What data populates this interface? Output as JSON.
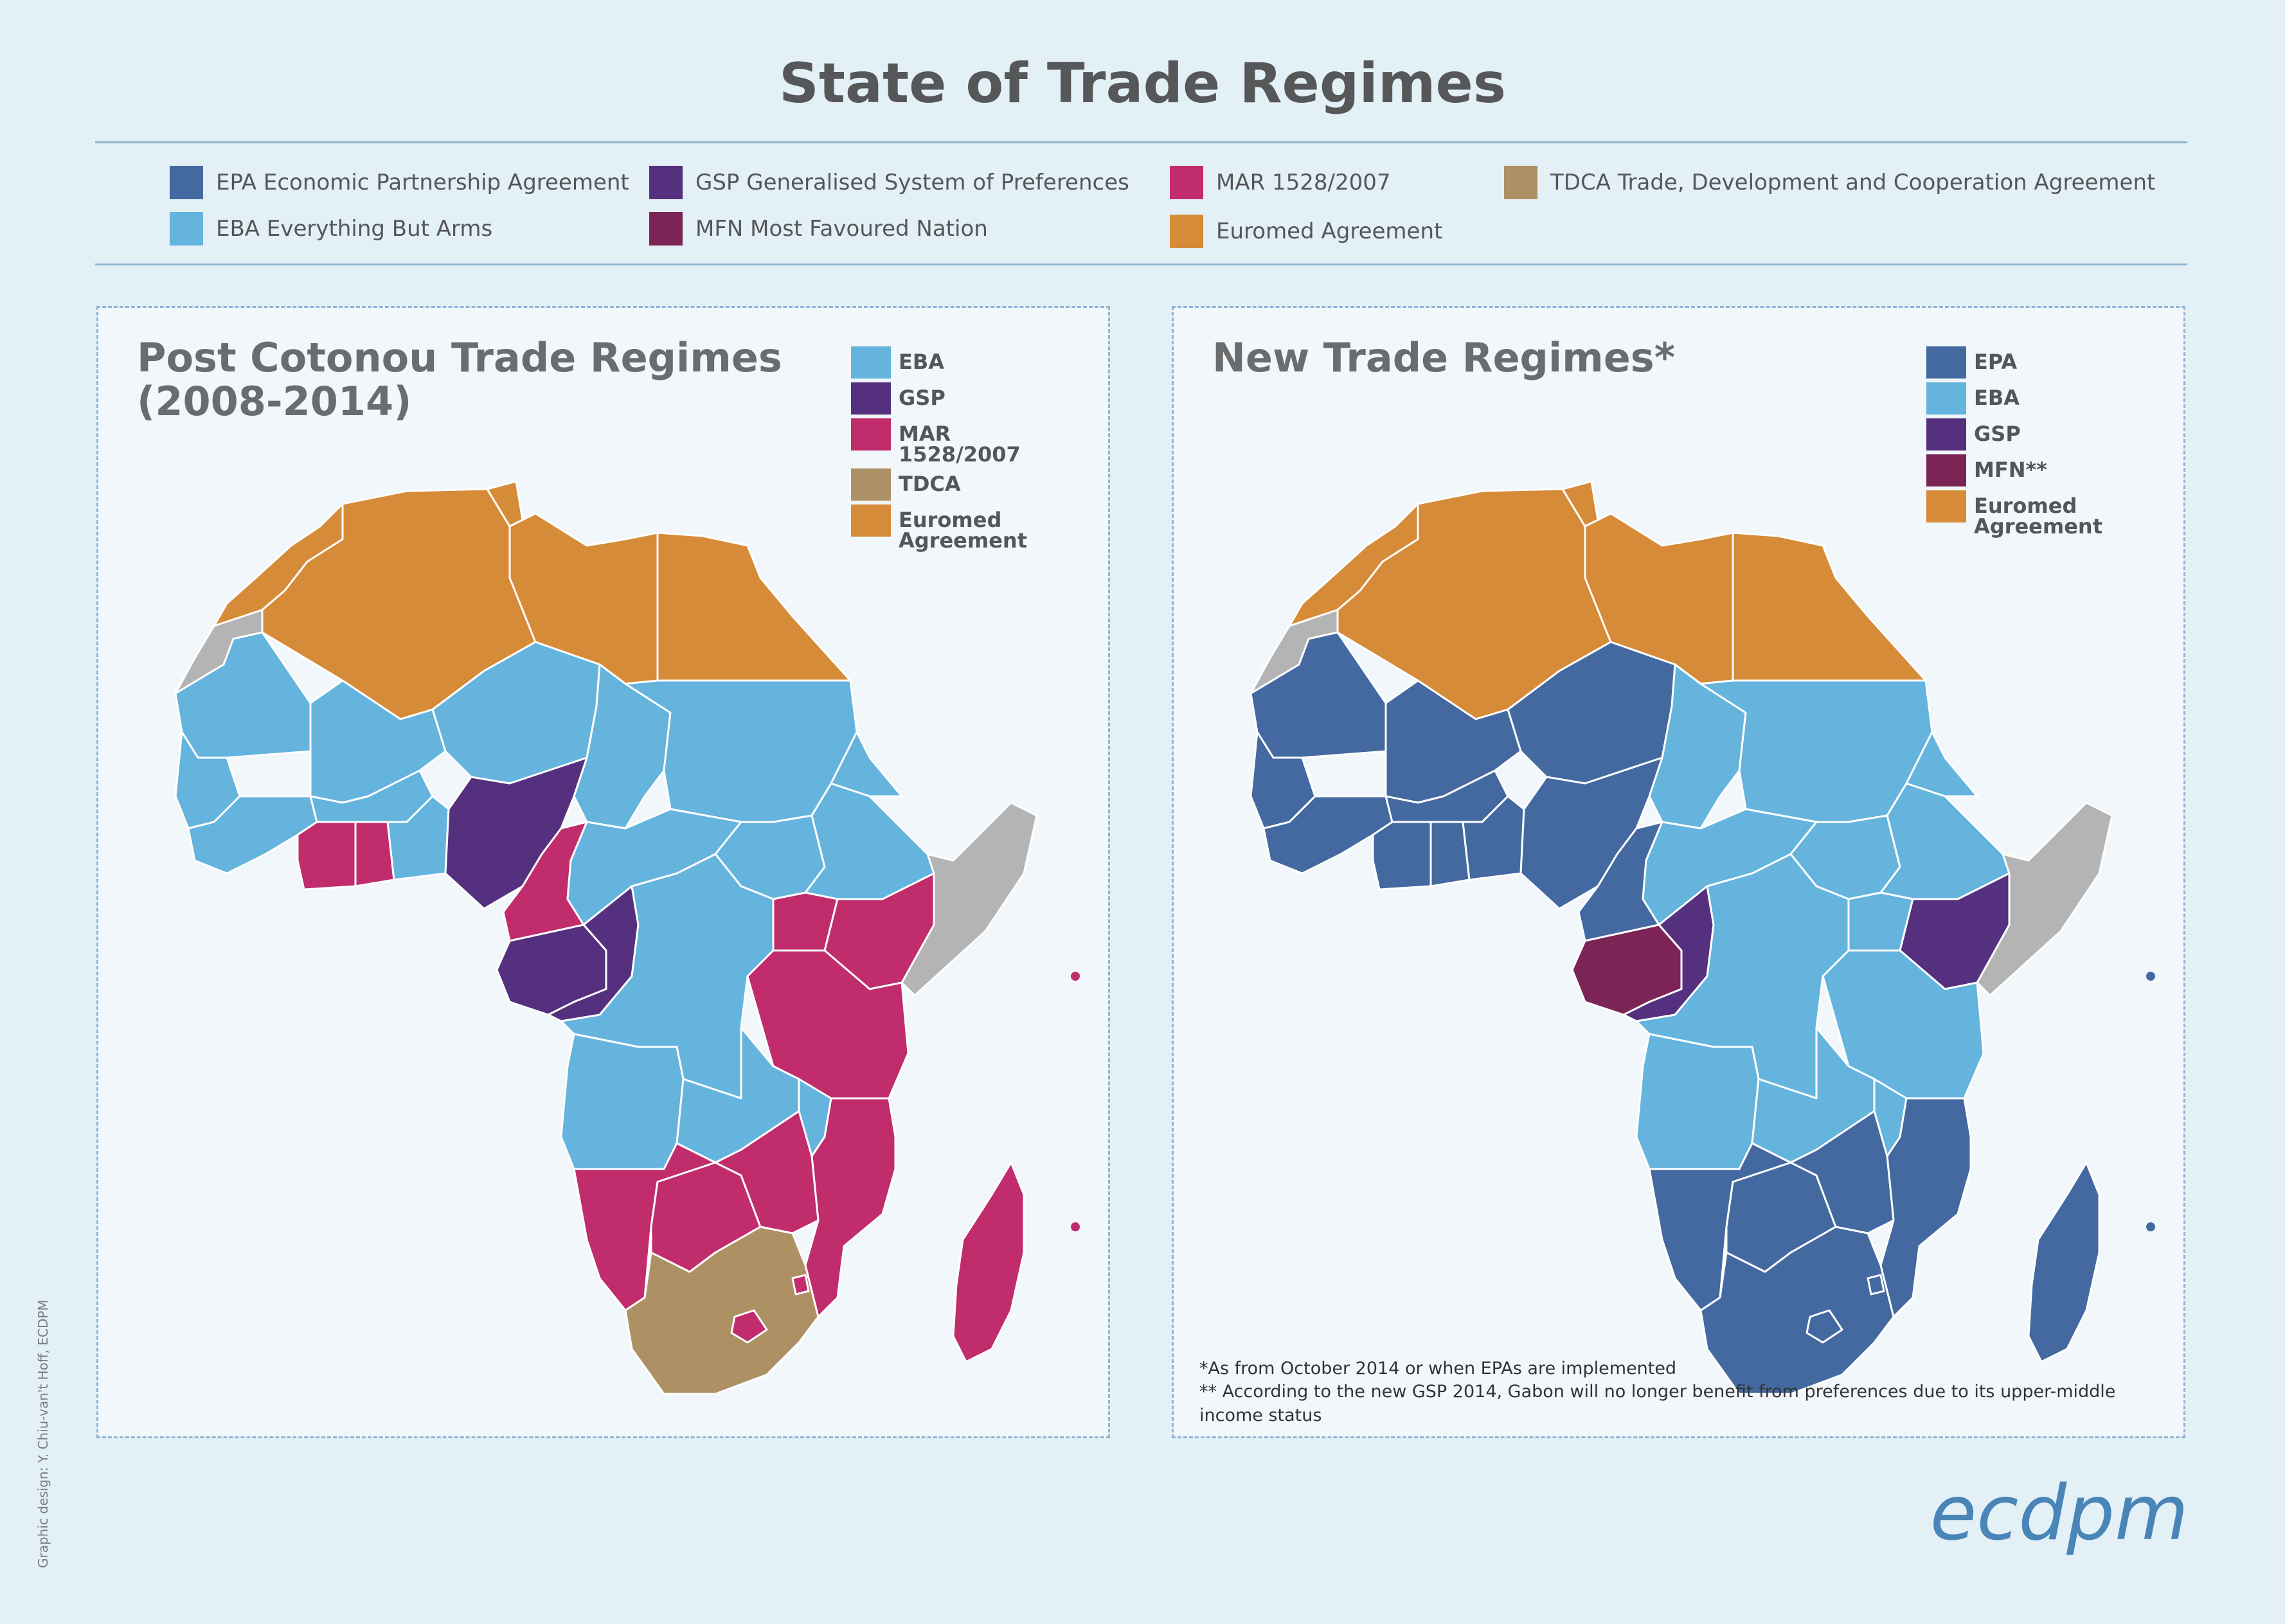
{
  "title": "State of Trade Regimes",
  "colors": {
    "EPA": "#4469a1",
    "EBA": "#64b4de",
    "GSP": "#54307e",
    "MFN": "#7c2456",
    "MAR": "#c02c6c",
    "TDCA": "#ae9065",
    "Euromed": "#d68b38",
    "None": "#b4b4b4",
    "border": "#ffffff"
  },
  "legend": [
    {
      "key": "EPA",
      "label": "EPA Economic Partnership Agreement"
    },
    {
      "key": "EBA",
      "label": "EBA Everything But Arms"
    },
    {
      "key": "GSP",
      "label": "GSP Generalised System of Preferences"
    },
    {
      "key": "MFN",
      "label": "MFN Most Favoured Nation"
    },
    {
      "key": "MAR",
      "label": "MAR 1528/2007"
    },
    {
      "key": "Euromed",
      "label": "Euromed Agreement"
    },
    {
      "key": "TDCA",
      "label": "TDCA Trade, Development and Cooperation Agreement"
    }
  ],
  "left_panel": {
    "title_line1": "Post Cotonou Trade Regimes",
    "title_line2": "(2008-2014)",
    "key": [
      {
        "key": "EBA",
        "label": "EBA"
      },
      {
        "key": "GSP",
        "label": "GSP"
      },
      {
        "key": "MAR",
        "label": "MAR 1528/2007"
      },
      {
        "key": "TDCA",
        "label": "TDCA"
      },
      {
        "key": "Euromed",
        "label": "Euromed Agreement"
      }
    ]
  },
  "right_panel": {
    "title": "New Trade Regimes*",
    "key": [
      {
        "key": "EPA",
        "label": "EPA"
      },
      {
        "key": "EBA",
        "label": "EBA"
      },
      {
        "key": "GSP",
        "label": "GSP"
      },
      {
        "key": "MFN",
        "label": "MFN**"
      },
      {
        "key": "Euromed",
        "label": "Euromed Agreement"
      }
    ],
    "footnote1": "*As from October 2014 or when EPAs are implemented",
    "footnote2": "** According to the new GSP 2014, Gabon will no longer benefit from preferences due to its upper-middle income status"
  },
  "credit": "Graphic design: Y. Chiu-van't Hoff, ECDPM",
  "logo": "ecdpm",
  "regions": [
    {
      "name": "morocco",
      "left": "Euromed",
      "right": "Euromed"
    },
    {
      "name": "western-sahara",
      "left": "None",
      "right": "None"
    },
    {
      "name": "algeria",
      "left": "Euromed",
      "right": "Euromed"
    },
    {
      "name": "tunisia",
      "left": "Euromed",
      "right": "Euromed"
    },
    {
      "name": "libya",
      "left": "Euromed",
      "right": "Euromed"
    },
    {
      "name": "egypt",
      "left": "Euromed",
      "right": "Euromed"
    },
    {
      "name": "mauritania",
      "left": "EBA",
      "right": "EPA"
    },
    {
      "name": "mali",
      "left": "EBA",
      "right": "EPA"
    },
    {
      "name": "niger",
      "left": "EBA",
      "right": "EPA"
    },
    {
      "name": "chad",
      "left": "EBA",
      "right": "EBA"
    },
    {
      "name": "sudan",
      "left": "EBA",
      "right": "EBA"
    },
    {
      "name": "senegal",
      "left": "EBA",
      "right": "EPA"
    },
    {
      "name": "guinea",
      "left": "EBA",
      "right": "EPA"
    },
    {
      "name": "burkina-faso",
      "left": "EBA",
      "right": "EPA"
    },
    {
      "name": "cote-divoire",
      "left": "MAR",
      "right": "EPA"
    },
    {
      "name": "ghana",
      "left": "MAR",
      "right": "EPA"
    },
    {
      "name": "togo-benin",
      "left": "EBA",
      "right": "EPA"
    },
    {
      "name": "nigeria",
      "left": "GSP",
      "right": "EPA"
    },
    {
      "name": "cameroon",
      "left": "MAR",
      "right": "EPA"
    },
    {
      "name": "central-african-rep",
      "left": "EBA",
      "right": "EBA"
    },
    {
      "name": "south-sudan",
      "left": "EBA",
      "right": "EBA"
    },
    {
      "name": "ethiopia",
      "left": "EBA",
      "right": "EBA"
    },
    {
      "name": "eritrea",
      "left": "EBA",
      "right": "EBA"
    },
    {
      "name": "somalia",
      "left": "None",
      "right": "None"
    },
    {
      "name": "gabon",
      "left": "GSP",
      "right": "MFN"
    },
    {
      "name": "congo",
      "left": "GSP",
      "right": "GSP"
    },
    {
      "name": "dr-congo",
      "left": "EBA",
      "right": "EBA"
    },
    {
      "name": "uganda",
      "left": "MAR",
      "right": "EBA"
    },
    {
      "name": "kenya",
      "left": "MAR",
      "right": "GSP"
    },
    {
      "name": "tanzania",
      "left": "MAR",
      "right": "EBA"
    },
    {
      "name": "angola",
      "left": "EBA",
      "right": "EBA"
    },
    {
      "name": "zambia",
      "left": "EBA",
      "right": "EBA"
    },
    {
      "name": "malawi",
      "left": "EBA",
      "right": "EBA"
    },
    {
      "name": "mozambique",
      "left": "MAR",
      "right": "EPA"
    },
    {
      "name": "namibia",
      "left": "MAR",
      "right": "EPA"
    },
    {
      "name": "botswana",
      "left": "MAR",
      "right": "EPA"
    },
    {
      "name": "zimbabwe",
      "left": "MAR",
      "right": "EPA"
    },
    {
      "name": "south-africa",
      "left": "TDCA",
      "right": "EPA"
    },
    {
      "name": "lesotho",
      "left": "MAR",
      "right": "EPA"
    },
    {
      "name": "swaziland",
      "left": "MAR",
      "right": "EPA"
    },
    {
      "name": "madagascar",
      "left": "MAR",
      "right": "EPA"
    },
    {
      "name": "mauritius",
      "left": "MAR",
      "right": "EPA"
    },
    {
      "name": "seychelles",
      "left": "MAR",
      "right": "EPA"
    }
  ]
}
